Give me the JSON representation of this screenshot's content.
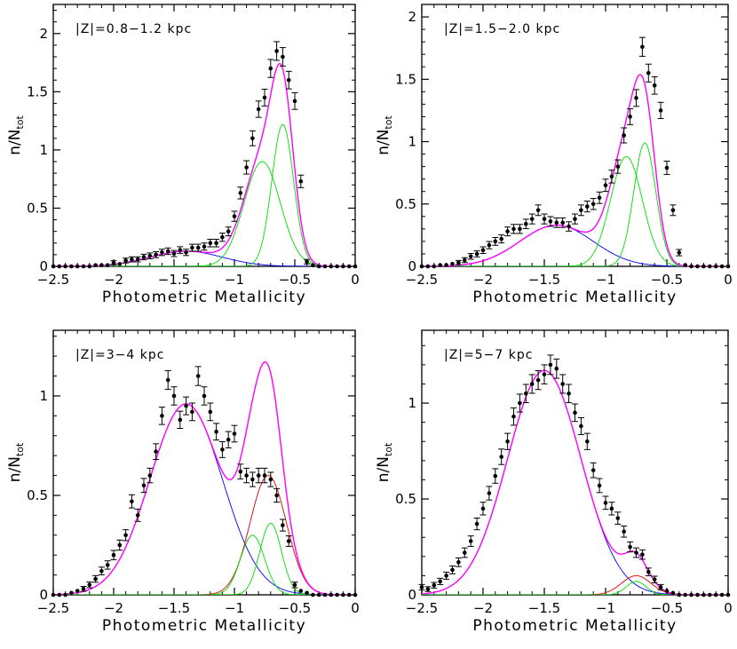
{
  "figure": {
    "panels": [
      {
        "title": "|Z|=0.8−1.2 kpc",
        "xlabel": "Photometric Metallicity",
        "ylabel_main": "n/N",
        "ylabel_sub": "tot",
        "xlim": [
          -2.5,
          0
        ],
        "ylim": [
          0,
          2.25
        ],
        "xticks": [
          -2.5,
          -2,
          -1.5,
          -1,
          -0.5,
          0
        ],
        "xtick_labels": [
          "−2.5",
          "−2",
          "−1.5",
          "−1",
          "−0.5",
          "0"
        ],
        "yticks": [
          0,
          0.5,
          1,
          1.5,
          2
        ],
        "ytick_labels": [
          "0",
          "0.5",
          "1",
          "1.5",
          "2"
        ],
        "points": [
          [
            -2.5,
            0.0
          ],
          [
            -2.45,
            0.0
          ],
          [
            -2.4,
            0.0
          ],
          [
            -2.35,
            0.0
          ],
          [
            -2.3,
            0.0
          ],
          [
            -2.25,
            0.0
          ],
          [
            -2.2,
            0.0
          ],
          [
            -2.15,
            0.01
          ],
          [
            -2.1,
            0.01
          ],
          [
            -2.05,
            0.01
          ],
          [
            -2.0,
            0.03
          ],
          [
            -1.95,
            0.02
          ],
          [
            -1.9,
            0.05
          ],
          [
            -1.85,
            0.06
          ],
          [
            -1.8,
            0.06
          ],
          [
            -1.75,
            0.08
          ],
          [
            -1.7,
            0.09
          ],
          [
            -1.65,
            0.1
          ],
          [
            -1.6,
            0.12
          ],
          [
            -1.55,
            0.13
          ],
          [
            -1.5,
            0.11
          ],
          [
            -1.45,
            0.14
          ],
          [
            -1.4,
            0.12
          ],
          [
            -1.35,
            0.16
          ],
          [
            -1.3,
            0.16
          ],
          [
            -1.25,
            0.17
          ],
          [
            -1.2,
            0.2
          ],
          [
            -1.15,
            0.2
          ],
          [
            -1.1,
            0.25
          ],
          [
            -1.05,
            0.3
          ],
          [
            -1.0,
            0.43
          ],
          [
            -0.95,
            0.63
          ],
          [
            -0.9,
            0.85
          ],
          [
            -0.85,
            1.1
          ],
          [
            -0.8,
            1.35
          ],
          [
            -0.75,
            1.45
          ],
          [
            -0.7,
            1.7
          ],
          [
            -0.65,
            1.85
          ],
          [
            -0.6,
            1.8
          ],
          [
            -0.55,
            1.6
          ],
          [
            -0.5,
            1.42
          ],
          [
            -0.45,
            0.73
          ],
          [
            -0.4,
            0.04
          ],
          [
            -0.35,
            0.01
          ],
          [
            -0.3,
            0.0
          ],
          [
            -0.25,
            0.0
          ],
          [
            -0.2,
            0.0
          ],
          [
            -0.15,
            0.0
          ],
          [
            -0.1,
            0.0
          ],
          [
            -0.05,
            0.0
          ],
          [
            0.0,
            0.0
          ]
        ],
        "components": [
          {
            "color": "#0000ff",
            "amplitude": 0.13,
            "mu": -1.4,
            "sigma": 0.3
          },
          {
            "color": "#00dd00",
            "amplitude": 0.9,
            "mu": -0.77,
            "sigma": 0.15
          },
          {
            "color": "#00dd00",
            "amplitude": 1.22,
            "mu": -0.6,
            "sigma": 0.09
          }
        ],
        "total_color": "#ff00ff"
      },
      {
        "title": "|Z|=1.5−2.0 kpc",
        "xlabel": "Photometric Metallicity",
        "ylabel_main": "n/N",
        "ylabel_sub": "tot",
        "xlim": [
          -2.5,
          0
        ],
        "ylim": [
          0,
          2.1
        ],
        "xticks": [
          -2.5,
          -2,
          -1.5,
          -1,
          -0.5,
          0
        ],
        "xtick_labels": [
          "−2.5",
          "−2",
          "−1.5",
          "−1",
          "−0.5",
          "0"
        ],
        "yticks": [
          0,
          0.5,
          1,
          1.5,
          2
        ],
        "ytick_labels": [
          "0",
          "0.5",
          "1",
          "1.5",
          "2"
        ],
        "points": [
          [
            -2.5,
            0.0
          ],
          [
            -2.45,
            0.0
          ],
          [
            -2.4,
            0.0
          ],
          [
            -2.35,
            0.01
          ],
          [
            -2.3,
            0.01
          ],
          [
            -2.25,
            0.02
          ],
          [
            -2.2,
            0.03
          ],
          [
            -2.15,
            0.05
          ],
          [
            -2.1,
            0.08
          ],
          [
            -2.05,
            0.1
          ],
          [
            -2.0,
            0.13
          ],
          [
            -1.95,
            0.17
          ],
          [
            -1.9,
            0.2
          ],
          [
            -1.85,
            0.22
          ],
          [
            -1.8,
            0.28
          ],
          [
            -1.75,
            0.3
          ],
          [
            -1.7,
            0.3
          ],
          [
            -1.65,
            0.34
          ],
          [
            -1.6,
            0.38
          ],
          [
            -1.55,
            0.45
          ],
          [
            -1.5,
            0.38
          ],
          [
            -1.45,
            0.36
          ],
          [
            -1.4,
            0.35
          ],
          [
            -1.35,
            0.35
          ],
          [
            -1.3,
            0.32
          ],
          [
            -1.25,
            0.38
          ],
          [
            -1.2,
            0.45
          ],
          [
            -1.15,
            0.48
          ],
          [
            -1.1,
            0.5
          ],
          [
            -1.05,
            0.55
          ],
          [
            -1.0,
            0.65
          ],
          [
            -0.95,
            0.72
          ],
          [
            -0.9,
            0.8
          ],
          [
            -0.85,
            1.05
          ],
          [
            -0.8,
            1.2
          ],
          [
            -0.75,
            1.35
          ],
          [
            -0.7,
            1.76
          ],
          [
            -0.65,
            1.55
          ],
          [
            -0.6,
            1.45
          ],
          [
            -0.55,
            1.25
          ],
          [
            -0.5,
            0.79
          ],
          [
            -0.45,
            0.45
          ],
          [
            -0.4,
            0.11
          ],
          [
            -0.35,
            0.01
          ],
          [
            -0.3,
            0.0
          ],
          [
            -0.25,
            0.0
          ],
          [
            -0.2,
            0.0
          ],
          [
            -0.15,
            0.0
          ],
          [
            -0.1,
            0.0
          ],
          [
            -0.05,
            0.0
          ],
          [
            0.0,
            0.0
          ]
        ],
        "components": [
          {
            "color": "#0000ff",
            "amplitude": 0.33,
            "mu": -1.4,
            "sigma": 0.3
          },
          {
            "color": "#00dd00",
            "amplitude": 0.88,
            "mu": -0.83,
            "sigma": 0.13
          },
          {
            "color": "#00dd00",
            "amplitude": 0.99,
            "mu": -0.68,
            "sigma": 0.09
          }
        ],
        "total_color": "#ff00ff"
      },
      {
        "title": "|Z|=3−4 kpc",
        "xlabel": "Photometric Metallicity",
        "ylabel_main": "n/N",
        "ylabel_sub": "tot",
        "xlim": [
          -2.5,
          0
        ],
        "ylim": [
          0,
          1.33
        ],
        "xticks": [
          -2.5,
          -2,
          -1.5,
          -1,
          -0.5,
          0
        ],
        "xtick_labels": [
          "−2.5",
          "−2",
          "−1.5",
          "−1",
          "−0.5",
          "0"
        ],
        "yticks": [
          0,
          0.5,
          1
        ],
        "ytick_labels": [
          "0",
          "0.5",
          "1"
        ],
        "points": [
          [
            -2.5,
            0.0
          ],
          [
            -2.45,
            0.0
          ],
          [
            -2.4,
            0.0
          ],
          [
            -2.35,
            0.01
          ],
          [
            -2.3,
            0.02
          ],
          [
            -2.25,
            0.03
          ],
          [
            -2.2,
            0.05
          ],
          [
            -2.15,
            0.08
          ],
          [
            -2.1,
            0.12
          ],
          [
            -2.05,
            0.15
          ],
          [
            -2.0,
            0.2
          ],
          [
            -1.95,
            0.25
          ],
          [
            -1.9,
            0.3
          ],
          [
            -1.85,
            0.47
          ],
          [
            -1.8,
            0.4
          ],
          [
            -1.75,
            0.55
          ],
          [
            -1.7,
            0.6
          ],
          [
            -1.65,
            0.72
          ],
          [
            -1.6,
            0.9
          ],
          [
            -1.55,
            1.08
          ],
          [
            -1.5,
            1.0
          ],
          [
            -1.45,
            0.88
          ],
          [
            -1.4,
            0.95
          ],
          [
            -1.35,
            0.92
          ],
          [
            -1.3,
            1.1
          ],
          [
            -1.25,
            1.0
          ],
          [
            -1.2,
            0.92
          ],
          [
            -1.15,
            0.82
          ],
          [
            -1.1,
            0.73
          ],
          [
            -1.05,
            0.78
          ],
          [
            -1.0,
            0.81
          ],
          [
            -0.95,
            0.62
          ],
          [
            -0.9,
            0.6
          ],
          [
            -0.85,
            0.58
          ],
          [
            -0.8,
            0.6
          ],
          [
            -0.75,
            0.6
          ],
          [
            -0.7,
            0.58
          ],
          [
            -0.65,
            0.5
          ],
          [
            -0.6,
            0.35
          ],
          [
            -0.55,
            0.27
          ],
          [
            -0.5,
            0.05
          ],
          [
            -0.45,
            0.02
          ],
          [
            -0.4,
            0.01
          ],
          [
            -0.35,
            0.0
          ],
          [
            -0.3,
            0.0
          ],
          [
            -0.25,
            0.0
          ],
          [
            -0.2,
            0.0
          ],
          [
            -0.15,
            0.0
          ],
          [
            -0.1,
            0.0
          ],
          [
            -0.05,
            0.0
          ],
          [
            0.0,
            0.0
          ]
        ],
        "components": [
          {
            "color": "#0000ff",
            "amplitude": 0.96,
            "mu": -1.4,
            "sigma": 0.3
          },
          {
            "color": "#dd0000",
            "amplitude": 0.6,
            "mu": -0.72,
            "sigma": 0.15
          },
          {
            "color": "#00dd00",
            "amplitude": 0.3,
            "mu": -0.85,
            "sigma": 0.1
          },
          {
            "color": "#00dd00",
            "amplitude": 0.36,
            "mu": -0.7,
            "sigma": 0.09
          }
        ],
        "total_color": "#ff00ff"
      },
      {
        "title": "|Z|=5−7 kpc",
        "xlabel": "Photometric Metallicity",
        "ylabel_main": "n/N",
        "ylabel_sub": "tot",
        "xlim": [
          -2.5,
          0
        ],
        "ylim": [
          0,
          1.38
        ],
        "xticks": [
          -2.5,
          -2,
          -1.5,
          -1,
          -0.5,
          0
        ],
        "xtick_labels": [
          "−2.5",
          "−2",
          "−1.5",
          "−1",
          "−0.5",
          "0"
        ],
        "yticks": [
          0,
          0.5,
          1
        ],
        "ytick_labels": [
          "0",
          "0.5",
          "1"
        ],
        "points": [
          [
            -2.5,
            0.04
          ],
          [
            -2.45,
            0.03
          ],
          [
            -2.4,
            0.05
          ],
          [
            -2.35,
            0.07
          ],
          [
            -2.3,
            0.1
          ],
          [
            -2.25,
            0.13
          ],
          [
            -2.2,
            0.17
          ],
          [
            -2.15,
            0.22
          ],
          [
            -2.1,
            0.28
          ],
          [
            -2.05,
            0.37
          ],
          [
            -2.0,
            0.45
          ],
          [
            -1.95,
            0.53
          ],
          [
            -1.9,
            0.62
          ],
          [
            -1.85,
            0.72
          ],
          [
            -1.8,
            0.8
          ],
          [
            -1.75,
            0.93
          ],
          [
            -1.7,
            1.0
          ],
          [
            -1.65,
            1.05
          ],
          [
            -1.6,
            1.1
          ],
          [
            -1.55,
            1.12
          ],
          [
            -1.5,
            1.15
          ],
          [
            -1.45,
            1.2
          ],
          [
            -1.4,
            1.18
          ],
          [
            -1.35,
            1.1
          ],
          [
            -1.3,
            1.05
          ],
          [
            -1.25,
            0.95
          ],
          [
            -1.2,
            0.88
          ],
          [
            -1.15,
            0.8
          ],
          [
            -1.1,
            0.65
          ],
          [
            -1.05,
            0.57
          ],
          [
            -1.0,
            0.48
          ],
          [
            -0.95,
            0.45
          ],
          [
            -0.9,
            0.4
          ],
          [
            -0.85,
            0.33
          ],
          [
            -0.8,
            0.25
          ],
          [
            -0.75,
            0.22
          ],
          [
            -0.7,
            0.21
          ],
          [
            -0.65,
            0.12
          ],
          [
            -0.6,
            0.08
          ],
          [
            -0.55,
            0.04
          ],
          [
            -0.5,
            0.02
          ],
          [
            -0.45,
            0.01
          ],
          [
            -0.4,
            0.0
          ],
          [
            -0.35,
            0.0
          ],
          [
            -0.3,
            0.0
          ],
          [
            -0.25,
            0.0
          ],
          [
            -0.2,
            0.0
          ],
          [
            -0.15,
            0.0
          ],
          [
            -0.1,
            0.0
          ],
          [
            -0.05,
            0.0
          ],
          [
            0.0,
            0.0
          ]
        ],
        "components": [
          {
            "color": "#0000ff",
            "amplitude": 1.17,
            "mu": -1.5,
            "sigma": 0.3
          },
          {
            "color": "#dd0000",
            "amplitude": 0.1,
            "mu": -0.75,
            "sigma": 0.12
          },
          {
            "color": "#00dd00",
            "amplitude": 0.07,
            "mu": -0.75,
            "sigma": 0.08
          }
        ],
        "total_color": "#ff00ff"
      }
    ]
  },
  "chart_data": [
    {
      "type": "scatter",
      "title": "|Z|=0.8−1.2 kpc",
      "xlabel": "Photometric Metallicity",
      "ylabel": "n/Ntot",
      "xlim": [
        -2.5,
        0
      ],
      "ylim": [
        0,
        2.25
      ],
      "peak": [
        -0.65,
        1.85
      ]
    },
    {
      "type": "scatter",
      "title": "|Z|=1.5−2.0 kpc",
      "xlabel": "Photometric Metallicity",
      "ylabel": "n/Ntot",
      "xlim": [
        -2.5,
        0
      ],
      "ylim": [
        0,
        2.1
      ],
      "peak": [
        -0.7,
        1.76
      ]
    },
    {
      "type": "scatter",
      "title": "|Z|=3−4 kpc",
      "xlabel": "Photometric Metallicity",
      "ylabel": "n/Ntot",
      "xlim": [
        -2.5,
        0
      ],
      "ylim": [
        0,
        1.33
      ],
      "peak": [
        -1.3,
        1.1
      ]
    },
    {
      "type": "scatter",
      "title": "|Z|=5−7 kpc",
      "xlabel": "Photometric Metallicity",
      "ylabel": "n/Ntot",
      "xlim": [
        -2.5,
        0
      ],
      "ylim": [
        0,
        1.38
      ],
      "peak": [
        -1.45,
        1.2
      ]
    }
  ]
}
